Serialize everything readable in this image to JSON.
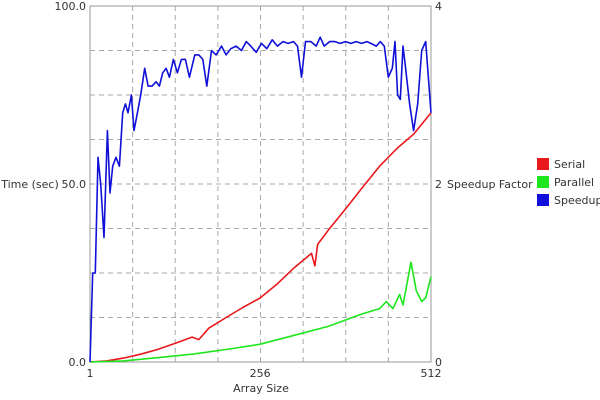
{
  "chart_data": {
    "type": "line",
    "xlabel": "Array Size",
    "ylabel_left": "Time (sec)",
    "ylabel_right": "Speedup Factor",
    "x_ticks": [
      1,
      256,
      512
    ],
    "x_range": [
      1,
      512
    ],
    "y_left_range": [
      0,
      100
    ],
    "y_left_ticks": [
      "0.0",
      "50.0",
      "100.0"
    ],
    "y_left_tick_values": [
      0,
      50,
      100
    ],
    "y_right_range": [
      0,
      4
    ],
    "y_right_ticks": [
      "0",
      "2",
      "4"
    ],
    "y_right_tick_values": [
      0,
      2,
      4
    ],
    "grid": true,
    "legend_position": "right",
    "series": [
      {
        "name": "Serial",
        "axis": "left",
        "color": "#e8191c",
        "points": [
          [
            1,
            0
          ],
          [
            26,
            0.3
          ],
          [
            51,
            1.1
          ],
          [
            77,
            2.2
          ],
          [
            102,
            3.5
          ],
          [
            128,
            5.2
          ],
          [
            154,
            7
          ],
          [
            164,
            6.3
          ],
          [
            179,
            9.5
          ],
          [
            205,
            12.5
          ],
          [
            230,
            15.3
          ],
          [
            256,
            18
          ],
          [
            282,
            22
          ],
          [
            307,
            26.5
          ],
          [
            333,
            30.5
          ],
          [
            338,
            27
          ],
          [
            342,
            33
          ],
          [
            358,
            37
          ],
          [
            384,
            43
          ],
          [
            409,
            49
          ],
          [
            435,
            55
          ],
          [
            461,
            60
          ],
          [
            486,
            64
          ],
          [
            512,
            70
          ]
        ]
      },
      {
        "name": "Parallel",
        "axis": "left",
        "color": "#1ee61e",
        "points": [
          [
            1,
            0
          ],
          [
            51,
            0.3
          ],
          [
            102,
            1.2
          ],
          [
            154,
            2.2
          ],
          [
            205,
            3.5
          ],
          [
            256,
            5
          ],
          [
            307,
            7.5
          ],
          [
            358,
            10
          ],
          [
            409,
            13.5
          ],
          [
            435,
            15
          ],
          [
            445,
            17
          ],
          [
            455,
            15
          ],
          [
            465,
            19
          ],
          [
            470,
            16
          ],
          [
            482,
            28
          ],
          [
            490,
            20
          ],
          [
            498,
            17
          ],
          [
            504,
            18
          ],
          [
            512,
            24
          ]
        ]
      },
      {
        "name": "Speedup",
        "axis": "right",
        "color": "#1010d8",
        "points": [
          [
            1,
            0
          ],
          [
            5,
            1
          ],
          [
            9,
            1
          ],
          [
            13,
            2.3
          ],
          [
            17,
            2
          ],
          [
            22,
            1.4
          ],
          [
            27,
            2.6
          ],
          [
            31,
            1.9
          ],
          [
            35,
            2.2
          ],
          [
            40,
            2.3
          ],
          [
            45,
            2.2
          ],
          [
            50,
            2.8
          ],
          [
            54,
            2.9
          ],
          [
            58,
            2.8
          ],
          [
            63,
            3
          ],
          [
            67,
            2.6
          ],
          [
            72,
            2.8
          ],
          [
            77,
            3
          ],
          [
            83,
            3.3
          ],
          [
            88,
            3.1
          ],
          [
            94,
            3.1
          ],
          [
            100,
            3.15
          ],
          [
            105,
            3.1
          ],
          [
            110,
            3.25
          ],
          [
            115,
            3.3
          ],
          [
            120,
            3.2
          ],
          [
            126,
            3.4
          ],
          [
            132,
            3.25
          ],
          [
            138,
            3.4
          ],
          [
            144,
            3.4
          ],
          [
            150,
            3.2
          ],
          [
            158,
            3.45
          ],
          [
            164,
            3.45
          ],
          [
            170,
            3.4
          ],
          [
            176,
            3.1
          ],
          [
            183,
            3.5
          ],
          [
            190,
            3.45
          ],
          [
            198,
            3.55
          ],
          [
            205,
            3.45
          ],
          [
            212,
            3.52
          ],
          [
            220,
            3.55
          ],
          [
            228,
            3.5
          ],
          [
            235,
            3.6
          ],
          [
            242,
            3.55
          ],
          [
            250,
            3.48
          ],
          [
            258,
            3.58
          ],
          [
            266,
            3.52
          ],
          [
            274,
            3.62
          ],
          [
            282,
            3.55
          ],
          [
            290,
            3.6
          ],
          [
            298,
            3.58
          ],
          [
            306,
            3.6
          ],
          [
            312,
            3.55
          ],
          [
            318,
            3.2
          ],
          [
            324,
            3.6
          ],
          [
            332,
            3.6
          ],
          [
            340,
            3.55
          ],
          [
            346,
            3.65
          ],
          [
            352,
            3.55
          ],
          [
            360,
            3.6
          ],
          [
            368,
            3.6
          ],
          [
            376,
            3.58
          ],
          [
            384,
            3.6
          ],
          [
            392,
            3.58
          ],
          [
            400,
            3.6
          ],
          [
            408,
            3.58
          ],
          [
            416,
            3.6
          ],
          [
            422,
            3.58
          ],
          [
            430,
            3.55
          ],
          [
            436,
            3.6
          ],
          [
            442,
            3.55
          ],
          [
            448,
            3.2
          ],
          [
            454,
            3.3
          ],
          [
            458,
            3.6
          ],
          [
            462,
            3
          ],
          [
            466,
            2.95
          ],
          [
            470,
            3.55
          ],
          [
            474,
            3.3
          ],
          [
            480,
            2.9
          ],
          [
            486,
            2.6
          ],
          [
            492,
            2.9
          ],
          [
            498,
            3.5
          ],
          [
            504,
            3.6
          ],
          [
            512,
            2.8
          ]
        ]
      }
    ]
  }
}
